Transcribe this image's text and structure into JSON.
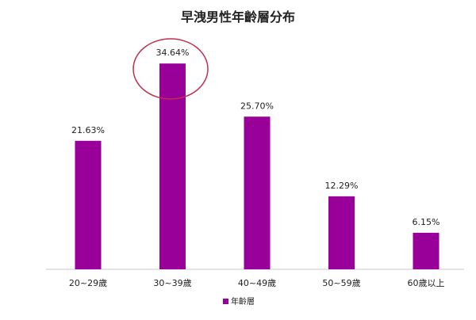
{
  "chart_data": {
    "type": "bar",
    "title": "早洩男性年齡層分布",
    "categories": [
      "20~29歲",
      "30~39歲",
      "40~49歲",
      "50~59歲",
      "60歲以上"
    ],
    "series": [
      {
        "name": "年齡層",
        "values": [
          21.63,
          34.64,
          25.7,
          12.29,
          6.15
        ]
      }
    ],
    "data_labels": [
      "21.63%",
      "34.64%",
      "25.70%",
      "12.29%",
      "6.15%"
    ],
    "value_unit": "%",
    "ylim": [
      0,
      40
    ],
    "grid": false,
    "legend": "bottom",
    "highlight": {
      "category_index": 1,
      "shape": "ellipse-outline",
      "color": "#c0304f"
    },
    "colors": {
      "bar": "#990099",
      "text": "#222222",
      "axis": "#c8c8c8"
    }
  }
}
